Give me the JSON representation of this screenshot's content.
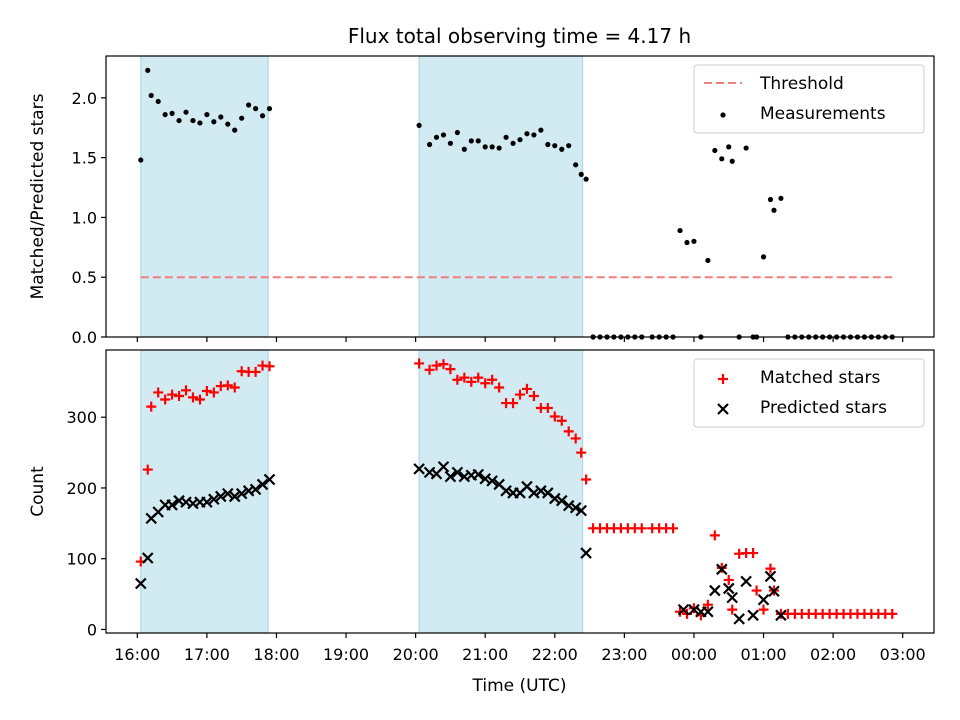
{
  "chart_data": {
    "type": "scatter",
    "title": "Flux total observing time = 4.17 h",
    "xlabel": "Time (UTC)",
    "x_unit": "hours UTC (values past 24 wrap to next day)",
    "xlim": [
      15.55,
      27.45
    ],
    "xticks": [
      16,
      17,
      18,
      19,
      20,
      21,
      22,
      23,
      24,
      25,
      26,
      27
    ],
    "xtick_labels": [
      "16:00",
      "17:00",
      "18:00",
      "19:00",
      "20:00",
      "21:00",
      "22:00",
      "23:00",
      "00:00",
      "01:00",
      "02:00",
      "03:00"
    ],
    "shaded_intervals": [
      [
        16.05,
        17.88
      ],
      [
        20.05,
        22.4
      ]
    ],
    "shade_color": "#add8e6",
    "panels": [
      {
        "ylabel": "Matched/Predicted stars",
        "ylim": [
          0,
          2.35
        ],
        "yticks": [
          0.0,
          0.5,
          1.0,
          1.5,
          2.0
        ],
        "ytick_labels": [
          "0.0",
          "0.5",
          "1.0",
          "1.5",
          "2.0"
        ],
        "legend_position": "upper right",
        "threshold": {
          "name": "Threshold",
          "y": 0.5,
          "x_range": [
            16.05,
            26.85
          ],
          "color": "#f08080",
          "style": "dashed"
        },
        "series": [
          {
            "name": "Measurements",
            "marker": "dot",
            "color": "#000000",
            "x": [
              16.05,
              16.15,
              16.2,
              16.3,
              16.4,
              16.5,
              16.6,
              16.7,
              16.8,
              16.9,
              17.0,
              17.1,
              17.2,
              17.3,
              17.4,
              17.5,
              17.6,
              17.7,
              17.8,
              17.9,
              20.05,
              20.2,
              20.3,
              20.4,
              20.5,
              20.6,
              20.7,
              20.8,
              20.9,
              21.0,
              21.1,
              21.2,
              21.3,
              21.4,
              21.5,
              21.6,
              21.7,
              21.8,
              21.9,
              22.0,
              22.1,
              22.2,
              22.3,
              22.38,
              22.45,
              22.55,
              22.65,
              22.75,
              22.85,
              22.95,
              23.05,
              23.15,
              23.25,
              23.4,
              23.5,
              23.6,
              23.7,
              23.8,
              23.9,
              24.0,
              24.1,
              24.2,
              24.3,
              24.4,
              24.5,
              24.55,
              24.65,
              24.75,
              24.85,
              24.9,
              25.0,
              25.1,
              25.15,
              25.25,
              25.35,
              25.45,
              25.55,
              25.65,
              25.75,
              25.85,
              25.95,
              26.05,
              26.15,
              26.25,
              26.35,
              26.45,
              26.55,
              26.65,
              26.75,
              26.85
            ],
            "y": [
              1.48,
              2.23,
              2.02,
              1.97,
              1.86,
              1.87,
              1.81,
              1.88,
              1.81,
              1.79,
              1.86,
              1.8,
              1.84,
              1.78,
              1.73,
              1.83,
              1.94,
              1.91,
              1.85,
              1.91,
              1.77,
              1.61,
              1.67,
              1.69,
              1.62,
              1.71,
              1.57,
              1.64,
              1.64,
              1.59,
              1.59,
              1.58,
              1.67,
              1.62,
              1.65,
              1.7,
              1.69,
              1.73,
              1.61,
              1.6,
              1.57,
              1.6,
              1.44,
              1.36,
              1.32,
              0.0,
              0.0,
              0.0,
              0.0,
              0.0,
              0.0,
              0.0,
              0.0,
              0.0,
              0.0,
              0.0,
              0.0,
              0.89,
              0.79,
              0.8,
              0.0,
              0.64,
              1.56,
              1.49,
              1.59,
              1.47,
              0.0,
              1.58,
              0.0,
              0.0,
              0.67,
              1.15,
              1.06,
              1.16,
              0.0,
              0.0,
              0.0,
              0.0,
              0.0,
              0.0,
              0.0,
              0.0,
              0.0,
              0.0,
              0.0,
              0.0,
              0.0,
              0.0,
              0.0,
              0.0
            ]
          }
        ]
      },
      {
        "ylabel": "Count",
        "ylim": [
          -5,
          395
        ],
        "yticks": [
          0,
          100,
          200,
          300
        ],
        "ytick_labels": [
          "0",
          "100",
          "200",
          "300"
        ],
        "legend_position": "upper right",
        "series": [
          {
            "name": "Matched stars",
            "marker": "plus",
            "color": "#ff0000",
            "x": [
              16.05,
              16.15,
              16.2,
              16.3,
              16.4,
              16.5,
              16.6,
              16.7,
              16.8,
              16.9,
              17.0,
              17.1,
              17.2,
              17.3,
              17.4,
              17.5,
              17.6,
              17.7,
              17.8,
              17.9,
              20.05,
              20.2,
              20.3,
              20.4,
              20.5,
              20.6,
              20.7,
              20.8,
              20.9,
              21.0,
              21.1,
              21.2,
              21.3,
              21.4,
              21.5,
              21.6,
              21.7,
              21.8,
              21.9,
              22.0,
              22.1,
              22.2,
              22.3,
              22.38,
              22.45,
              22.55,
              22.65,
              22.75,
              22.85,
              22.95,
              23.05,
              23.15,
              23.25,
              23.4,
              23.5,
              23.6,
              23.7,
              23.8,
              23.9,
              24.0,
              24.1,
              24.2,
              24.3,
              24.4,
              24.5,
              24.55,
              24.65,
              24.75,
              24.85,
              24.9,
              25.0,
              25.1,
              25.15,
              25.25,
              25.35,
              25.45,
              25.55,
              25.65,
              25.75,
              25.85,
              25.95,
              26.05,
              26.15,
              26.25,
              26.35,
              26.45,
              26.55,
              26.65,
              26.75,
              26.85
            ],
            "y": [
              96,
              226,
              315,
              335,
              325,
              332,
              330,
              338,
              328,
              325,
              337,
              335,
              344,
              345,
              342,
              365,
              364,
              364,
              373,
              372,
              376,
              367,
              373,
              375,
              368,
              353,
              356,
              350,
              356,
              348,
              353,
              342,
              320,
              320,
              332,
              340,
              330,
              313,
              313,
              301,
              295,
              280,
              270,
              250,
              212,
              143,
              143,
              143,
              143,
              143,
              143,
              143,
              143,
              143,
              143,
              143,
              143,
              25,
              22,
              30,
              20,
              35,
              133,
              87,
              70,
              28,
              107,
              108,
              108,
              55,
              28,
              86,
              55,
              22,
              22,
              22,
              22,
              22,
              22,
              22,
              22,
              22,
              22,
              22,
              22,
              22,
              22,
              22,
              22,
              22
            ]
          },
          {
            "name": "Predicted stars",
            "marker": "x",
            "color": "#000000",
            "x": [
              16.05,
              16.15,
              16.2,
              16.3,
              16.4,
              16.5,
              16.6,
              16.7,
              16.8,
              16.9,
              17.0,
              17.1,
              17.2,
              17.3,
              17.4,
              17.5,
              17.6,
              17.7,
              17.8,
              17.9,
              20.05,
              20.2,
              20.3,
              20.4,
              20.5,
              20.6,
              20.7,
              20.8,
              20.9,
              21.0,
              21.1,
              21.2,
              21.3,
              21.4,
              21.5,
              21.6,
              21.7,
              21.8,
              21.9,
              22.0,
              22.1,
              22.2,
              22.3,
              22.38,
              22.45,
              23.85,
              24.0,
              24.1,
              24.2,
              24.3,
              24.4,
              24.5,
              24.55,
              24.65,
              24.75,
              24.85,
              25.0,
              25.1,
              25.15,
              25.25
            ],
            "y": [
              65,
              101,
              157,
              166,
              176,
              176,
              182,
              180,
              178,
              180,
              180,
              184,
              188,
              192,
              188,
              192,
              196,
              198,
              205,
              212,
              227,
              222,
              220,
              230,
              216,
              222,
              216,
              218,
              219,
              213,
              210,
              205,
              196,
              193,
              193,
              202,
              193,
              196,
              193,
              185,
              182,
              175,
              172,
              168,
              108,
              28,
              28,
              25,
              25,
              55,
              85,
              58,
              45,
              15,
              68,
              20,
              42,
              75,
              54,
              20
            ]
          }
        ]
      }
    ]
  }
}
